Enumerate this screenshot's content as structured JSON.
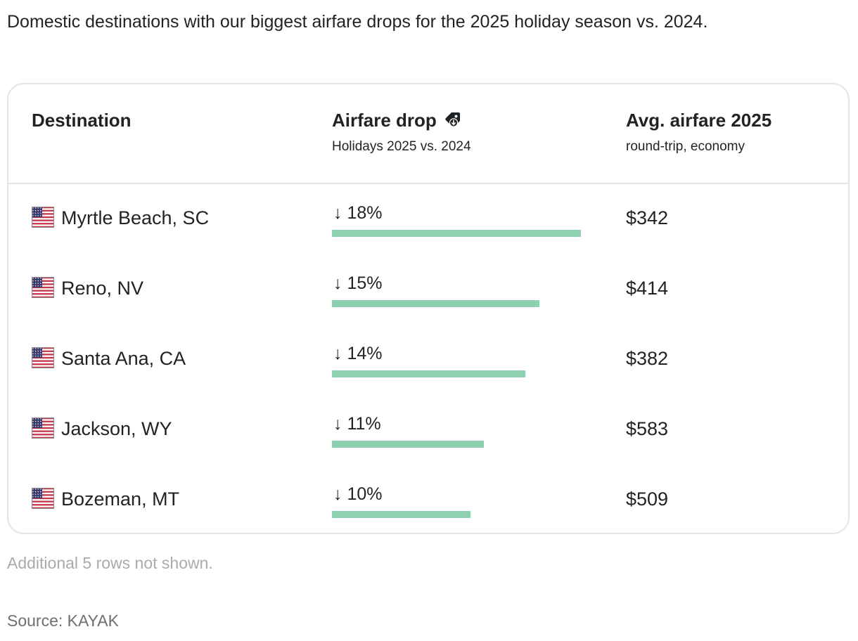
{
  "intro": "Domestic destinations with our biggest airfare drops for the 2025 holiday season vs. 2024.",
  "table": {
    "col_destination": "Destination",
    "col_drop_title": "Airfare drop",
    "col_drop_sub": "Holidays 2025 vs. 2024",
    "col_fare_title": "Avg. airfare 2025",
    "col_fare_sub": "round-trip, economy",
    "drop_icon": "price-tag-down-icon",
    "flag_icon": "us-flag-icon"
  },
  "chart_data": {
    "type": "bar",
    "orientation": "horizontal",
    "title": "Airfare drop",
    "subtitle": "Holidays 2025 vs. 2024",
    "unit": "%",
    "categories": [
      "Myrtle Beach, SC",
      "Reno, NV",
      "Santa Ana, CA",
      "Jackson, WY",
      "Bozeman, MT"
    ],
    "values": [
      18,
      15,
      14,
      11,
      10
    ],
    "value_labels": [
      "↓ 18%",
      "↓ 15%",
      "↓ 14%",
      "↓ 11%",
      "↓ 10%"
    ],
    "avg_airfare_2025": [
      "$342",
      "$414",
      "$382",
      "$583",
      "$509"
    ],
    "xlim": [
      0,
      18
    ],
    "bar_color": "#8ed1b1"
  },
  "note": "Additional 5 rows not shown.",
  "source": "Source: KAYAK"
}
